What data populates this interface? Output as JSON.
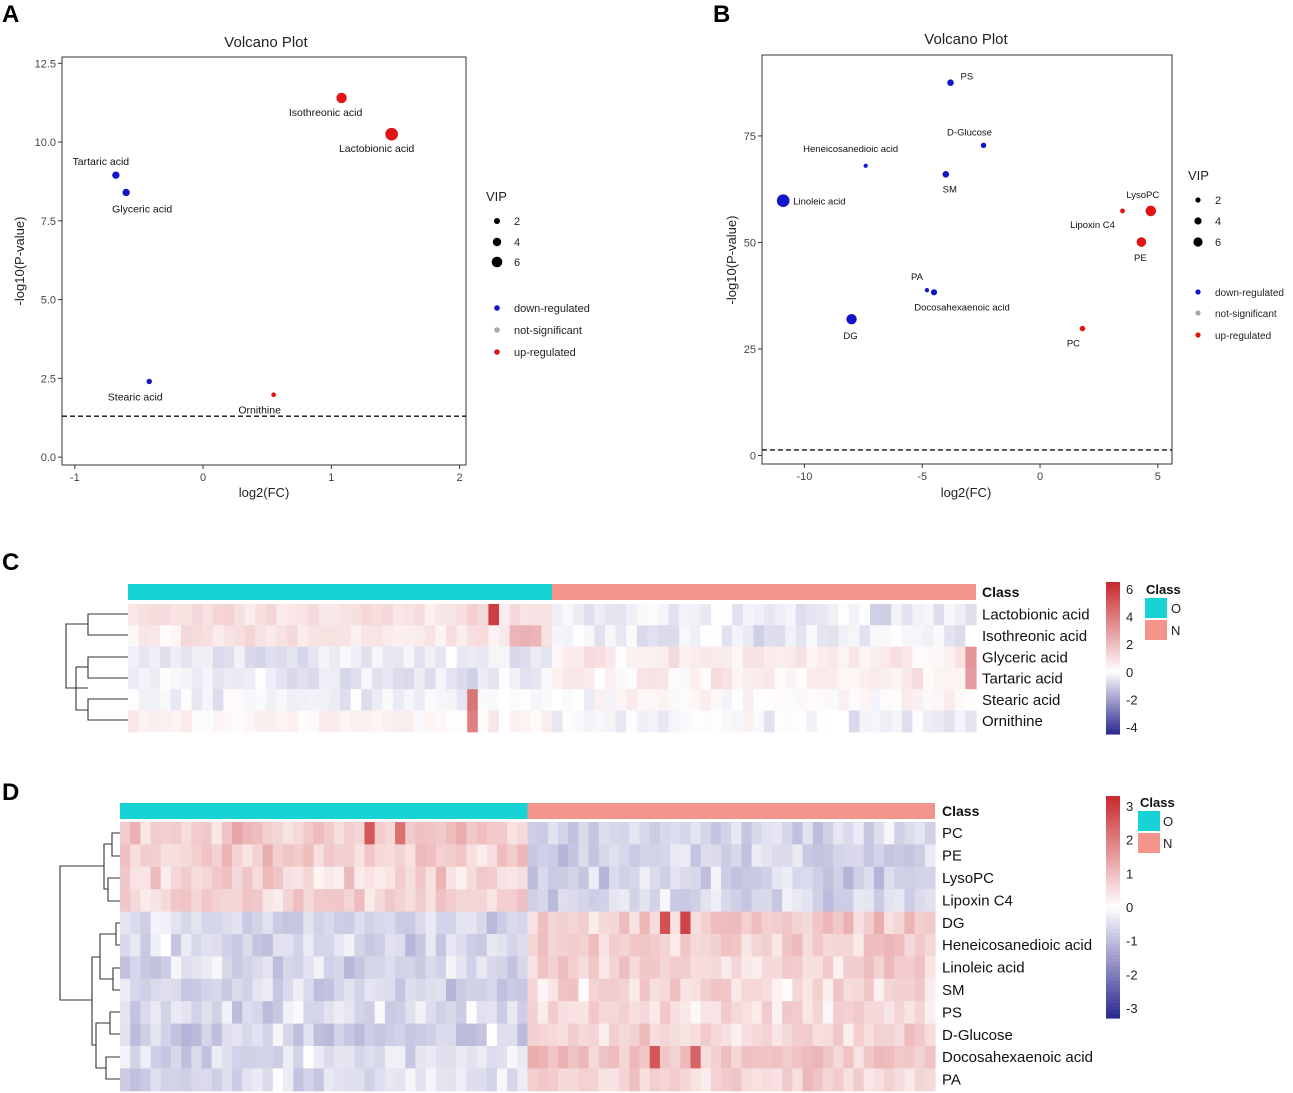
{
  "figure_panels": [
    "A",
    "B",
    "C",
    "D"
  ],
  "colors": {
    "down": "#1414c8",
    "up": "#e01414",
    "ns": "#a8a8a8",
    "class_O": "#17d3d6",
    "class_N": "#f4958b",
    "heat_low": "#2a2a90",
    "heat_mid": "#ffffff",
    "heat_high": "#c8282c"
  },
  "chart_data": [
    {
      "panel": "A",
      "type": "scatter",
      "title": "Volcano Plot",
      "xlabel": "log2(FC)",
      "ylabel": "-log10(P-value)",
      "xlim": [
        -1.1,
        2.05
      ],
      "ylim": [
        -0.25,
        12.7
      ],
      "xticks": [
        -1,
        0,
        1,
        2
      ],
      "xticklabels": [
        "-1",
        "0",
        "1",
        "2"
      ],
      "yticks": [
        0,
        2.5,
        5,
        7.5,
        10,
        12.5
      ],
      "yticklabels": [
        "0.0",
        "2.5",
        "5.0",
        "7.5",
        "10.0",
        "12.5"
      ],
      "threshold": 1.3,
      "points": [
        {
          "label": "Isothreonic acid",
          "x": 1.08,
          "y": 11.4,
          "vip": 4.2,
          "group": "up-regulated"
        },
        {
          "label": "Lactobionic acid",
          "x": 1.47,
          "y": 10.25,
          "vip": 5.4,
          "group": "up-regulated"
        },
        {
          "label": "Tartaric acid",
          "x": -0.68,
          "y": 8.95,
          "vip": 2.6,
          "group": "down-regulated"
        },
        {
          "label": "Glyceric acid",
          "x": -0.6,
          "y": 8.4,
          "vip": 2.6,
          "group": "down-regulated"
        },
        {
          "label": "Stearic acid",
          "x": -0.42,
          "y": 2.4,
          "vip": 1.6,
          "group": "down-regulated"
        },
        {
          "label": "Ornithine",
          "x": 0.55,
          "y": 1.98,
          "vip": 1.2,
          "group": "up-regulated"
        }
      ],
      "legend": {
        "size_title": "VIP",
        "size_entries": [
          "2",
          "4",
          "6"
        ],
        "color_entries": [
          "down-regulated",
          "not-significant",
          "up-regulated"
        ]
      }
    },
    {
      "panel": "B",
      "type": "scatter",
      "title": "Volcano Plot",
      "xlabel": "log2(FC)",
      "ylabel": "-log10(P-value)",
      "xlim": [
        -11.8,
        5.6
      ],
      "ylim": [
        -2,
        94
      ],
      "xticks": [
        -10,
        -5,
        0,
        5
      ],
      "xticklabels": [
        "-10",
        "-5",
        "0",
        "5"
      ],
      "yticks": [
        0,
        25,
        50,
        75
      ],
      "yticklabels": [
        "0",
        "25",
        "50",
        "75"
      ],
      "threshold": 1.3,
      "points": [
        {
          "label": "PS",
          "x": -3.8,
          "y": 87.5,
          "vip": 2.2,
          "group": "down-regulated"
        },
        {
          "label": "D-Glucose",
          "x": -2.4,
          "y": 72.8,
          "vip": 1.6,
          "group": "down-regulated"
        },
        {
          "label": "Heneicosanedioic acid",
          "x": -7.4,
          "y": 68,
          "vip": 1.0,
          "group": "down-regulated"
        },
        {
          "label": "SM",
          "x": -4.0,
          "y": 66,
          "vip": 2.2,
          "group": "down-regulated"
        },
        {
          "label": "Linoleic acid",
          "x": -10.9,
          "y": 59.8,
          "vip": 5.4,
          "group": "down-regulated"
        },
        {
          "label": "LysoPC",
          "x": 4.7,
          "y": 57.4,
          "vip": 4.3,
          "group": "up-regulated"
        },
        {
          "label": "Lipoxin C4",
          "x": 3.5,
          "y": 57.4,
          "vip": 1.3,
          "group": "up-regulated"
        },
        {
          "label": "PE",
          "x": 4.3,
          "y": 50.1,
          "vip": 3.8,
          "group": "up-regulated"
        },
        {
          "label": "PA",
          "x": -4.8,
          "y": 38.8,
          "vip": 1.0,
          "group": "down-regulated"
        },
        {
          "label": "Docosahexaenoic acid",
          "x": -4.5,
          "y": 38.3,
          "vip": 2.0,
          "group": "down-regulated"
        },
        {
          "label": "DG",
          "x": -8.0,
          "y": 32,
          "vip": 4.2,
          "group": "down-regulated"
        },
        {
          "label": "PC",
          "x": 1.8,
          "y": 29.8,
          "vip": 1.6,
          "group": "up-regulated"
        }
      ],
      "legend": {
        "size_title": "VIP",
        "size_entries": [
          "2",
          "4",
          "6"
        ],
        "color_entries": [
          "down-regulated",
          "not-significant",
          "up-regulated"
        ]
      }
    },
    {
      "panel": "C",
      "type": "heatmap",
      "class_header": "Class",
      "rows": [
        "Lactobionic acid",
        "Isothreonic acid",
        "Glyceric acid",
        "Tartaric acid",
        "Stearic acid",
        "Ornithine"
      ],
      "n_samples_O": 40,
      "n_samples_N": 40,
      "row_means_O": [
        0.9,
        0.7,
        -0.5,
        -0.45,
        -0.3,
        0.3
      ],
      "row_means_N": [
        -0.4,
        -0.4,
        0.6,
        0.5,
        0.15,
        -0.2
      ],
      "colorbar": {
        "min": -4.5,
        "max": 6.5,
        "ticks": [
          6,
          4,
          2,
          0,
          -2,
          -4
        ],
        "ticklabels": [
          "6",
          "4",
          "2",
          "0",
          "-2",
          "-4"
        ]
      },
      "class_legend": {
        "title": "Class",
        "labels": [
          "O",
          "N"
        ]
      },
      "dendrogram_groups": [
        [
          0,
          1
        ],
        [
          2,
          3
        ],
        [
          4,
          5
        ]
      ]
    },
    {
      "panel": "D",
      "type": "heatmap",
      "class_header": "Class",
      "rows": [
        "PC",
        "PE",
        "LysoPC",
        "Lipoxin C4",
        "DG",
        "Heneicosanedioic acid",
        "Linoleic acid",
        "SM",
        "PS",
        "D-Glucose",
        "Docosahexaenoic acid",
        "PA"
      ],
      "n_samples_O": 40,
      "n_samples_N": 40,
      "row_means_O": [
        0.8,
        0.7,
        0.65,
        0.75,
        -0.6,
        -0.6,
        -0.6,
        -0.6,
        -0.6,
        -0.75,
        -0.5,
        -0.5
      ],
      "row_means_N": [
        -0.7,
        -0.7,
        -0.7,
        -0.7,
        0.8,
        0.75,
        0.7,
        0.55,
        0.55,
        0.6,
        0.9,
        0.6
      ],
      "colorbar": {
        "min": -3.3,
        "max": 3.3,
        "ticks": [
          3,
          2,
          1,
          0,
          -1,
          -2,
          -3
        ],
        "ticklabels": [
          "3",
          "2",
          "1",
          "0",
          "-1",
          "-2",
          "-3"
        ]
      },
      "class_legend": {
        "title": "Class",
        "labels": [
          "O",
          "N"
        ]
      },
      "dendrogram_groups": [
        [
          0,
          1,
          2,
          3
        ],
        [
          4,
          5,
          6,
          7,
          8,
          9,
          10,
          11
        ]
      ]
    }
  ]
}
